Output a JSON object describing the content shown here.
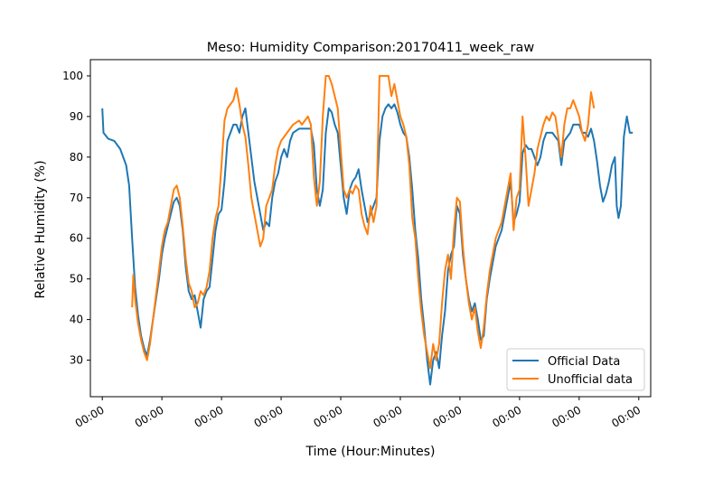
{
  "chart_data": {
    "type": "line",
    "title": "Meso: Humidity Comparison:20170411_week_raw",
    "xlabel": "Time (Hour:Minutes)",
    "ylabel": "Relative Humidity (%)",
    "xlim": [
      -0.2,
      9.2
    ],
    "ylim": [
      21,
      104
    ],
    "x_ticks": [
      0,
      1,
      2,
      3,
      4,
      5,
      6,
      7,
      8,
      9
    ],
    "x_tick_labels": [
      "00:00",
      "00:00",
      "00:00",
      "00:00",
      "00:00",
      "00:00",
      "00:00",
      "00:00",
      "00:00",
      "00:00"
    ],
    "y_ticks": [
      30,
      40,
      50,
      60,
      70,
      80,
      90,
      100
    ],
    "y_tick_labels": [
      "30",
      "40",
      "50",
      "60",
      "70",
      "80",
      "90",
      "100"
    ],
    "grid": false,
    "legend_position": "lower-right",
    "series": [
      {
        "name": "Official Data",
        "color": "#1f77b4",
        "points": [
          [
            0.0,
            92
          ],
          [
            0.02,
            86
          ],
          [
            0.1,
            84.5
          ],
          [
            0.2,
            84
          ],
          [
            0.3,
            82
          ],
          [
            0.4,
            78
          ],
          [
            0.45,
            73
          ],
          [
            0.5,
            60
          ],
          [
            0.55,
            48
          ],
          [
            0.6,
            41
          ],
          [
            0.65,
            36
          ],
          [
            0.7,
            33
          ],
          [
            0.75,
            31
          ],
          [
            0.8,
            35
          ],
          [
            0.85,
            40
          ],
          [
            0.9,
            45
          ],
          [
            0.95,
            50
          ],
          [
            1.0,
            56
          ],
          [
            1.05,
            60
          ],
          [
            1.1,
            63
          ],
          [
            1.15,
            66
          ],
          [
            1.2,
            69
          ],
          [
            1.25,
            70
          ],
          [
            1.3,
            68
          ],
          [
            1.35,
            62
          ],
          [
            1.4,
            53
          ],
          [
            1.45,
            47
          ],
          [
            1.5,
            45
          ],
          [
            1.55,
            46
          ],
          [
            1.6,
            42
          ],
          [
            1.65,
            38
          ],
          [
            1.7,
            45
          ],
          [
            1.75,
            47
          ],
          [
            1.8,
            48
          ],
          [
            1.85,
            55
          ],
          [
            1.9,
            62
          ],
          [
            1.95,
            66
          ],
          [
            2.0,
            67
          ],
          [
            2.05,
            74
          ],
          [
            2.1,
            84
          ],
          [
            2.15,
            86
          ],
          [
            2.2,
            88
          ],
          [
            2.25,
            88
          ],
          [
            2.3,
            86
          ],
          [
            2.35,
            90
          ],
          [
            2.4,
            92
          ],
          [
            2.45,
            86
          ],
          [
            2.5,
            80
          ],
          [
            2.55,
            74
          ],
          [
            2.6,
            70
          ],
          [
            2.65,
            66
          ],
          [
            2.7,
            62
          ],
          [
            2.75,
            64
          ],
          [
            2.8,
            63
          ],
          [
            2.85,
            70
          ],
          [
            2.9,
            74
          ],
          [
            2.95,
            76
          ],
          [
            3.0,
            80
          ],
          [
            3.05,
            82
          ],
          [
            3.1,
            80
          ],
          [
            3.15,
            84
          ],
          [
            3.2,
            86
          ],
          [
            3.3,
            87
          ],
          [
            3.4,
            87
          ],
          [
            3.5,
            87
          ],
          [
            3.55,
            83
          ],
          [
            3.6,
            72
          ],
          [
            3.65,
            68
          ],
          [
            3.7,
            72
          ],
          [
            3.75,
            86
          ],
          [
            3.8,
            92
          ],
          [
            3.85,
            91
          ],
          [
            3.9,
            88
          ],
          [
            3.95,
            86
          ],
          [
            4.0,
            78
          ],
          [
            4.05,
            70
          ],
          [
            4.1,
            66
          ],
          [
            4.15,
            72
          ],
          [
            4.2,
            74
          ],
          [
            4.25,
            75
          ],
          [
            4.3,
            77
          ],
          [
            4.35,
            72
          ],
          [
            4.4,
            68
          ],
          [
            4.45,
            64
          ],
          [
            4.5,
            66
          ],
          [
            4.55,
            68
          ],
          [
            4.6,
            70
          ],
          [
            4.65,
            84
          ],
          [
            4.7,
            90
          ],
          [
            4.75,
            92
          ],
          [
            4.8,
            93
          ],
          [
            4.85,
            92
          ],
          [
            4.9,
            93
          ],
          [
            4.95,
            91
          ],
          [
            5.0,
            88
          ],
          [
            5.05,
            86
          ],
          [
            5.1,
            85
          ],
          [
            5.15,
            80
          ],
          [
            5.2,
            72
          ],
          [
            5.25,
            62
          ],
          [
            5.3,
            55
          ],
          [
            5.35,
            45
          ],
          [
            5.4,
            38
          ],
          [
            5.45,
            30
          ],
          [
            5.5,
            24
          ],
          [
            5.55,
            30
          ],
          [
            5.6,
            32
          ],
          [
            5.65,
            28
          ],
          [
            5.7,
            36
          ],
          [
            5.75,
            42
          ],
          [
            5.8,
            52
          ],
          [
            5.85,
            56
          ],
          [
            5.9,
            58
          ],
          [
            5.95,
            68
          ],
          [
            6.0,
            66
          ],
          [
            6.05,
            56
          ],
          [
            6.1,
            50
          ],
          [
            6.15,
            45
          ],
          [
            6.2,
            42
          ],
          [
            6.25,
            44
          ],
          [
            6.3,
            40
          ],
          [
            6.35,
            35
          ],
          [
            6.4,
            36
          ],
          [
            6.45,
            45
          ],
          [
            6.5,
            50
          ],
          [
            6.55,
            54
          ],
          [
            6.6,
            58
          ],
          [
            6.65,
            60
          ],
          [
            6.7,
            62
          ],
          [
            6.75,
            66
          ],
          [
            6.8,
            70
          ],
          [
            6.85,
            74
          ],
          [
            6.9,
            64
          ],
          [
            6.95,
            66
          ],
          [
            7.0,
            69
          ],
          [
            7.05,
            81
          ],
          [
            7.1,
            83
          ],
          [
            7.15,
            82
          ],
          [
            7.2,
            82
          ],
          [
            7.25,
            80
          ],
          [
            7.3,
            78
          ],
          [
            7.35,
            80
          ],
          [
            7.4,
            84
          ],
          [
            7.45,
            86
          ],
          [
            7.5,
            86
          ],
          [
            7.55,
            86
          ],
          [
            7.6,
            85
          ],
          [
            7.65,
            84
          ],
          [
            7.7,
            78
          ],
          [
            7.75,
            84
          ],
          [
            7.85,
            86
          ],
          [
            7.9,
            88
          ],
          [
            7.95,
            88
          ],
          [
            8.0,
            88
          ],
          [
            8.05,
            86
          ],
          [
            8.1,
            86
          ],
          [
            8.15,
            85
          ],
          [
            8.2,
            87
          ],
          [
            8.25,
            84
          ],
          [
            8.3,
            79
          ],
          [
            8.35,
            73
          ],
          [
            8.4,
            69
          ],
          [
            8.45,
            71
          ],
          [
            8.5,
            74
          ],
          [
            8.55,
            78
          ],
          [
            8.6,
            80
          ],
          [
            8.63,
            68
          ],
          [
            8.66,
            65
          ],
          [
            8.7,
            68
          ],
          [
            8.75,
            85
          ],
          [
            8.8,
            90
          ],
          [
            8.85,
            86
          ],
          [
            8.9,
            86
          ]
        ]
      },
      {
        "name": "Unofficial data",
        "color": "#ff7f0e",
        "points": [
          [
            0.5,
            43
          ],
          [
            0.52,
            51
          ],
          [
            0.55,
            45
          ],
          [
            0.6,
            39
          ],
          [
            0.65,
            35
          ],
          [
            0.7,
            32
          ],
          [
            0.75,
            30
          ],
          [
            0.8,
            34
          ],
          [
            0.85,
            40
          ],
          [
            0.9,
            46
          ],
          [
            0.95,
            52
          ],
          [
            1.0,
            58
          ],
          [
            1.05,
            62
          ],
          [
            1.1,
            64
          ],
          [
            1.15,
            68
          ],
          [
            1.2,
            72
          ],
          [
            1.25,
            73
          ],
          [
            1.3,
            70
          ],
          [
            1.35,
            63
          ],
          [
            1.4,
            55
          ],
          [
            1.45,
            49
          ],
          [
            1.5,
            47
          ],
          [
            1.55,
            43
          ],
          [
            1.6,
            44
          ],
          [
            1.65,
            47
          ],
          [
            1.7,
            46
          ],
          [
            1.75,
            48
          ],
          [
            1.8,
            52
          ],
          [
            1.85,
            60
          ],
          [
            1.9,
            65
          ],
          [
            1.95,
            68
          ],
          [
            2.0,
            78
          ],
          [
            2.05,
            89
          ],
          [
            2.1,
            92
          ],
          [
            2.15,
            93
          ],
          [
            2.2,
            94
          ],
          [
            2.25,
            97
          ],
          [
            2.3,
            93
          ],
          [
            2.35,
            88
          ],
          [
            2.4,
            85
          ],
          [
            2.45,
            78
          ],
          [
            2.5,
            70
          ],
          [
            2.55,
            66
          ],
          [
            2.6,
            62
          ],
          [
            2.65,
            58
          ],
          [
            2.7,
            60
          ],
          [
            2.75,
            68
          ],
          [
            2.8,
            70
          ],
          [
            2.85,
            72
          ],
          [
            2.9,
            78
          ],
          [
            2.95,
            82
          ],
          [
            3.0,
            84
          ],
          [
            3.1,
            86
          ],
          [
            3.2,
            88
          ],
          [
            3.3,
            89
          ],
          [
            3.35,
            88
          ],
          [
            3.45,
            90
          ],
          [
            3.5,
            88
          ],
          [
            3.55,
            75
          ],
          [
            3.6,
            68
          ],
          [
            3.65,
            74
          ],
          [
            3.7,
            90
          ],
          [
            3.75,
            100
          ],
          [
            3.8,
            100
          ],
          [
            3.85,
            98
          ],
          [
            3.9,
            95
          ],
          [
            3.95,
            92
          ],
          [
            4.0,
            82
          ],
          [
            4.05,
            72
          ],
          [
            4.1,
            70
          ],
          [
            4.15,
            72
          ],
          [
            4.2,
            71
          ],
          [
            4.25,
            73
          ],
          [
            4.3,
            72
          ],
          [
            4.35,
            66
          ],
          [
            4.4,
            63
          ],
          [
            4.45,
            61
          ],
          [
            4.5,
            68
          ],
          [
            4.55,
            64
          ],
          [
            4.6,
            68
          ],
          [
            4.65,
            100
          ],
          [
            4.7,
            100
          ],
          [
            4.8,
            100
          ],
          [
            4.85,
            95
          ],
          [
            4.9,
            98
          ],
          [
            4.95,
            94
          ],
          [
            5.0,
            90
          ],
          [
            5.05,
            88
          ],
          [
            5.1,
            85
          ],
          [
            5.15,
            78
          ],
          [
            5.2,
            65
          ],
          [
            5.25,
            60
          ],
          [
            5.3,
            50
          ],
          [
            5.35,
            42
          ],
          [
            5.4,
            36
          ],
          [
            5.45,
            32
          ],
          [
            5.5,
            28
          ],
          [
            5.55,
            34
          ],
          [
            5.6,
            30
          ],
          [
            5.65,
            34
          ],
          [
            5.7,
            44
          ],
          [
            5.75,
            52
          ],
          [
            5.8,
            56
          ],
          [
            5.85,
            50
          ],
          [
            5.9,
            62
          ],
          [
            5.95,
            70
          ],
          [
            6.0,
            69
          ],
          [
            6.05,
            58
          ],
          [
            6.1,
            50
          ],
          [
            6.15,
            44
          ],
          [
            6.2,
            40
          ],
          [
            6.25,
            43
          ],
          [
            6.3,
            37
          ],
          [
            6.35,
            33
          ],
          [
            6.4,
            38
          ],
          [
            6.45,
            46
          ],
          [
            6.5,
            52
          ],
          [
            6.55,
            56
          ],
          [
            6.6,
            60
          ],
          [
            6.65,
            62
          ],
          [
            6.7,
            64
          ],
          [
            6.75,
            68
          ],
          [
            6.8,
            72
          ],
          [
            6.85,
            76
          ],
          [
            6.9,
            62
          ],
          [
            6.95,
            70
          ],
          [
            7.0,
            72
          ],
          [
            7.05,
            90
          ],
          [
            7.1,
            80
          ],
          [
            7.15,
            68
          ],
          [
            7.2,
            72
          ],
          [
            7.25,
            76
          ],
          [
            7.3,
            82
          ],
          [
            7.35,
            85
          ],
          [
            7.4,
            88
          ],
          [
            7.45,
            90
          ],
          [
            7.5,
            89
          ],
          [
            7.55,
            91
          ],
          [
            7.6,
            90
          ],
          [
            7.65,
            85
          ],
          [
            7.7,
            80
          ],
          [
            7.75,
            88
          ],
          [
            7.8,
            92
          ],
          [
            7.85,
            92
          ],
          [
            7.9,
            94
          ],
          [
            7.95,
            92
          ],
          [
            8.0,
            90
          ],
          [
            8.05,
            86
          ],
          [
            8.1,
            84
          ],
          [
            8.15,
            88
          ],
          [
            8.2,
            96
          ],
          [
            8.25,
            92
          ]
        ]
      }
    ]
  }
}
